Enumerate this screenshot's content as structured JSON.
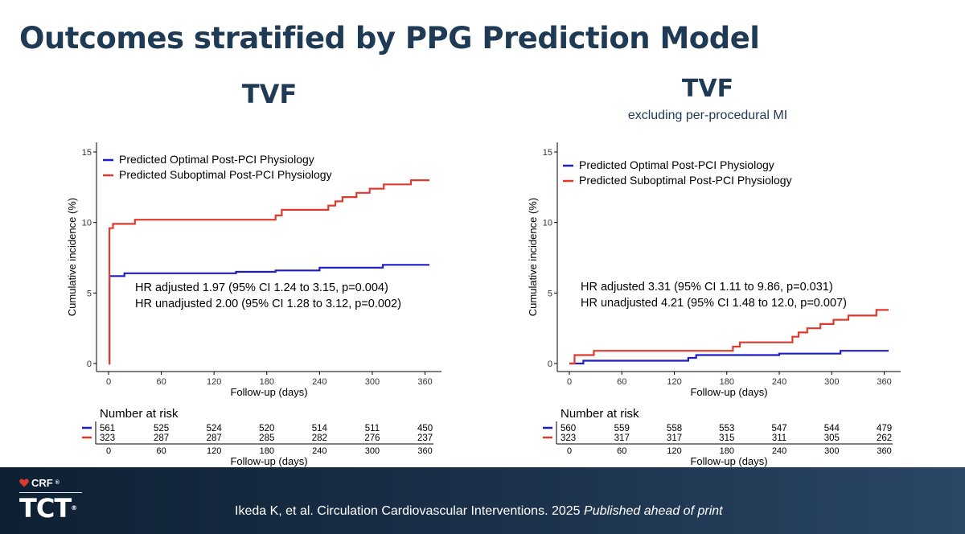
{
  "slide": {
    "title": "Outcomes stratified by PPG Prediction Model",
    "citation_main": "Ikeda K, et al. Circulation Cardiovascular Interventions. 2025",
    "citation_italic": "Published ahead of print",
    "logo_top": "CRF",
    "logo_top_mark": "®",
    "logo_main": "TCT",
    "logo_main_mark": "®"
  },
  "colors": {
    "title": "#1f3a55",
    "optimal": "#1c1cc8",
    "suboptimal": "#e03a2e",
    "footer": "#13263a"
  },
  "chart_data": [
    {
      "type": "line",
      "title": "TVF",
      "subtitle": "",
      "xlabel": "Follow-up (days)",
      "ylabel": "Cumulative incidence (%)",
      "xlim": [
        0,
        365
      ],
      "ylim": [
        0,
        15
      ],
      "xticks": [
        0,
        60,
        120,
        180,
        240,
        300,
        360
      ],
      "yticks": [
        0,
        5,
        10,
        15
      ],
      "grid": false,
      "legend_placement": "top-left",
      "annotations": [
        "HR adjusted 1.97 (95% CI 1.24 to 3.15, p=0.004)",
        "HR unadjusted 2.00 (95% CI 1.28 to 3.12, p=0.002)"
      ],
      "series": [
        {
          "name": "Predicted Optimal Post-PCI Physiology",
          "color": "#1c1cc8",
          "points": [
            [
              0,
              0
            ],
            [
              1,
              6.2
            ],
            [
              18,
              6.4
            ],
            [
              145,
              6.5
            ],
            [
              190,
              6.6
            ],
            [
              240,
              6.8
            ],
            [
              312,
              7.0
            ],
            [
              365,
              7.0
            ]
          ]
        },
        {
          "name": "Predicted Suboptimal Post-PCI Physiology",
          "color": "#e03a2e",
          "points": [
            [
              0,
              0
            ],
            [
              1,
              9.6
            ],
            [
              5,
              9.9
            ],
            [
              30,
              10.2
            ],
            [
              190,
              10.5
            ],
            [
              197,
              10.9
            ],
            [
              250,
              11.2
            ],
            [
              258,
              11.5
            ],
            [
              266,
              11.8
            ],
            [
              282,
              12.1
            ],
            [
              297,
              12.4
            ],
            [
              313,
              12.7
            ],
            [
              344,
              13.0
            ],
            [
              365,
              13.0
            ]
          ]
        }
      ],
      "risk_table": {
        "title": "Number at risk",
        "xlabel": "Follow-up (days)",
        "times": [
          0,
          60,
          120,
          180,
          240,
          300,
          360
        ],
        "rows": [
          {
            "color": "#1c1cc8",
            "values": [
              "561",
              "525",
              "524",
              "520",
              "514",
              "511",
              "450"
            ]
          },
          {
            "color": "#e03a2e",
            "values": [
              "323",
              "287",
              "287",
              "285",
              "282",
              "276",
              "237"
            ]
          }
        ]
      }
    },
    {
      "type": "line",
      "title": "TVF",
      "subtitle": "excluding per-procedural MI",
      "xlabel": "Follow-up (days)",
      "ylabel": "Cumulative incidence (%)",
      "xlim": [
        0,
        365
      ],
      "ylim": [
        0,
        15
      ],
      "xticks": [
        0,
        60,
        120,
        180,
        240,
        300,
        360
      ],
      "yticks": [
        0,
        5,
        10,
        15
      ],
      "grid": false,
      "legend_placement": "top-left",
      "annotations": [
        "HR adjusted 3.31 (95% CI 1.11 to 9.86, p=0.031)",
        "HR unadjusted 4.21 (95% CI 1.48 to 12.0, p=0.007)"
      ],
      "series": [
        {
          "name": "Predicted Optimal Post-PCI Physiology",
          "color": "#1c1cc8",
          "points": [
            [
              0,
              0
            ],
            [
              16,
              0.2
            ],
            [
              136,
              0.4
            ],
            [
              145,
              0.6
            ],
            [
              240,
              0.7
            ],
            [
              310,
              0.9
            ],
            [
              365,
              0.9
            ]
          ]
        },
        {
          "name": "Predicted Suboptimal Post-PCI Physiology",
          "color": "#e03a2e",
          "points": [
            [
              0,
              0
            ],
            [
              6,
              0.6
            ],
            [
              28,
              0.9
            ],
            [
              187,
              1.2
            ],
            [
              195,
              1.5
            ],
            [
              255,
              1.9
            ],
            [
              262,
              2.2
            ],
            [
              272,
              2.5
            ],
            [
              287,
              2.8
            ],
            [
              302,
              3.1
            ],
            [
              319,
              3.4
            ],
            [
              351,
              3.8
            ],
            [
              365,
              3.8
            ]
          ]
        }
      ],
      "risk_table": {
        "title": "Number at risk",
        "xlabel": "Follow-up (days)",
        "times": [
          0,
          60,
          120,
          180,
          240,
          300,
          360
        ],
        "rows": [
          {
            "color": "#1c1cc8",
            "values": [
              "560",
              "559",
              "558",
              "553",
              "547",
              "544",
              "479"
            ]
          },
          {
            "color": "#e03a2e",
            "values": [
              "323",
              "317",
              "317",
              "315",
              "311",
              "305",
              "262"
            ]
          }
        ]
      }
    }
  ]
}
